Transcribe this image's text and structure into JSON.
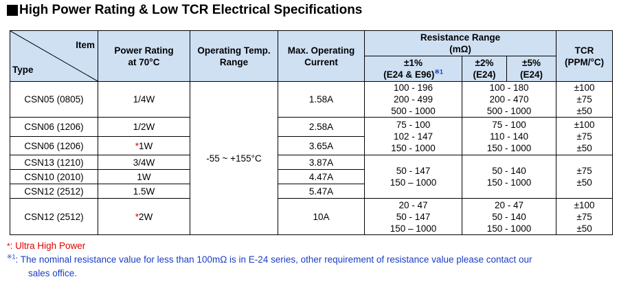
{
  "title": "High Power Rating & Low TCR Electrical Specifications",
  "header": {
    "item": "Item",
    "type": "Type",
    "power_rating": [
      "Power Rating",
      "at 70°C"
    ],
    "operating_temp": [
      "Operating Temp.",
      "Range"
    ],
    "max_current": [
      "Max. Operating",
      "Current"
    ],
    "resistance_range": [
      "Resistance Range",
      "(mΩ)"
    ],
    "tol1": [
      "±1%",
      "(E24 & E96)"
    ],
    "tol1_mark": "※1",
    "tol2": [
      "±2%",
      "(E24)"
    ],
    "tol5": [
      "±5%",
      "(E24)"
    ],
    "tcr": [
      "TCR",
      "(PPM/°C)"
    ]
  },
  "operating_temp_value": "-55 ~ +155°C",
  "rows": [
    {
      "type": "CSN05 (0805)",
      "power": "1/4W",
      "power_star": "",
      "current": "1.58A"
    },
    {
      "type": "CSN06 (1206)",
      "power": "1/2W",
      "power_star": "",
      "current": "2.58A"
    },
    {
      "type": "CSN06 (1206)",
      "power": "1W",
      "power_star": "*",
      "current": "3.65A"
    },
    {
      "type": "CSN13 (1210)",
      "power": "3/4W",
      "power_star": "",
      "current": "3.87A"
    },
    {
      "type": "CSN10 (2010)",
      "power": "1W",
      "power_star": "",
      "current": "4.47A"
    },
    {
      "type": "CSN12 (2512)",
      "power": "1.5W",
      "power_star": "",
      "current": "5.47A"
    },
    {
      "type": "CSN12 (2512)",
      "power": "2W",
      "power_star": "*",
      "current": "10A"
    }
  ],
  "groups": [
    {
      "tol1": [
        "100 - 196",
        "200 - 499",
        "500 - 1000"
      ],
      "tol25": [
        "100 - 180",
        "200 - 470",
        "500 - 1000"
      ],
      "tcr": [
        "±100",
        "±75",
        "±50"
      ]
    },
    {
      "tol1": [
        "75 - 100",
        "102 - 147",
        "150 - 1000"
      ],
      "tol25": [
        "75 - 100",
        "110 - 140",
        "150 - 1000"
      ],
      "tcr": [
        "±100",
        "±75",
        "±50"
      ]
    },
    {
      "tol1": [
        "50 - 147",
        "150 – 1000"
      ],
      "tol25": [
        "50 - 140",
        "150 - 1000"
      ],
      "tcr": [
        "±75",
        "±50"
      ]
    },
    {
      "tol1": [
        "20 - 47",
        "50 - 147",
        "150 – 1000"
      ],
      "tol25": [
        "20 - 47",
        "50 - 140",
        "150 - 1000"
      ],
      "tcr": [
        "±100",
        "±75",
        "±50"
      ]
    }
  ],
  "notes": {
    "star_mark": "*",
    "star_text": ": Ultra High Power",
    "ref_mark": "※1",
    "ref_text": ": The nominal resistance value for less than 100mΩ is in E-24 series, other requirement of resistance value please contact our",
    "ref_text2": "sales office."
  }
}
